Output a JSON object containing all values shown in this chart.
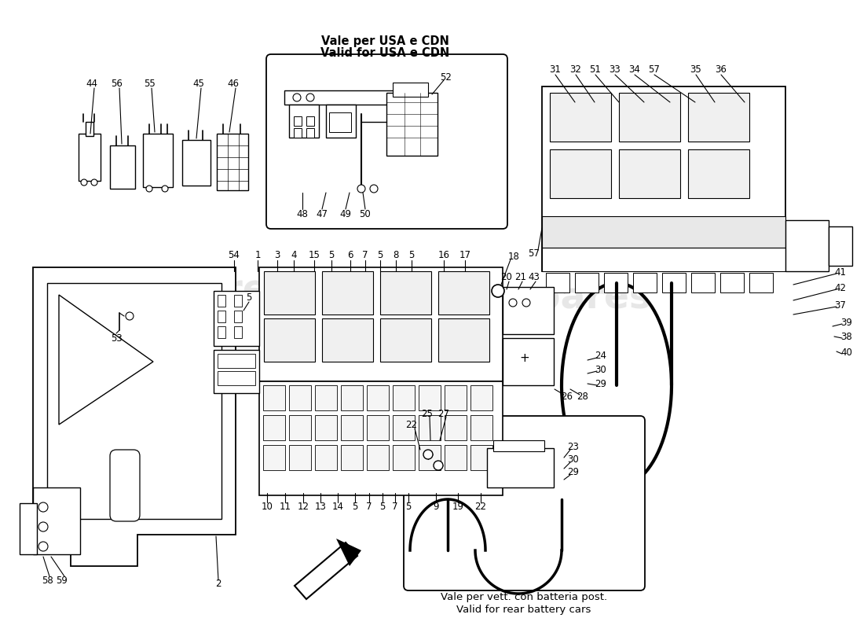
{
  "bg": "#ffffff",
  "wm": "eurospares",
  "b1l1": "Vale per USA e CDN",
  "b1l2": "Valid for USA e CDN",
  "b2l1": "Vale per vett. con batteria post.",
  "b2l2": "Valid for rear battery cars",
  "fw": 11.0,
  "fh": 8.0,
  "dpi": 100
}
